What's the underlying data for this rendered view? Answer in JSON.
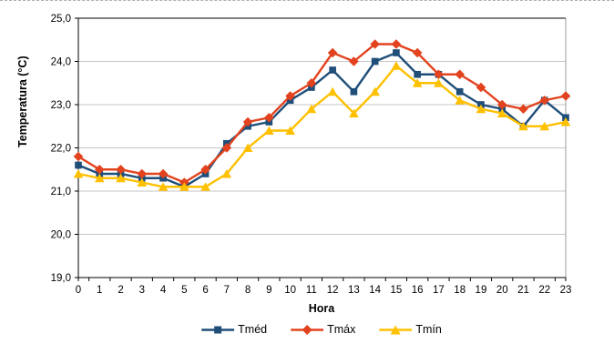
{
  "chart_data": {
    "type": "line",
    "title": "",
    "xlabel": "Hora",
    "ylabel": "Temperatura (°C)",
    "categories": [
      0,
      1,
      2,
      3,
      4,
      5,
      6,
      7,
      8,
      9,
      10,
      11,
      12,
      13,
      14,
      15,
      16,
      17,
      18,
      19,
      20,
      21,
      22,
      23
    ],
    "series": [
      {
        "name": "Tméd",
        "marker": "square",
        "color": "#1F4E79",
        "values": [
          21.6,
          21.4,
          21.4,
          21.3,
          21.3,
          21.1,
          21.4,
          22.1,
          22.5,
          22.6,
          23.1,
          23.4,
          23.8,
          23.3,
          24.0,
          24.2,
          23.7,
          23.7,
          23.3,
          23.0,
          22.9,
          22.5,
          23.1,
          22.7
        ]
      },
      {
        "name": "Tmáx",
        "marker": "diamond",
        "color": "#E2431E",
        "values": [
          21.8,
          21.5,
          21.5,
          21.4,
          21.4,
          21.2,
          21.5,
          22.0,
          22.6,
          22.7,
          23.2,
          23.5,
          24.2,
          24.0,
          24.4,
          24.4,
          24.2,
          23.7,
          23.7,
          23.4,
          23.0,
          22.9,
          23.1,
          23.2
        ]
      },
      {
        "name": "Tmín",
        "marker": "triangle",
        "color": "#FFC000",
        "values": [
          21.4,
          21.3,
          21.3,
          21.2,
          21.1,
          21.1,
          21.1,
          21.4,
          22.0,
          22.4,
          22.4,
          22.9,
          23.3,
          22.8,
          23.3,
          23.9,
          23.5,
          23.5,
          23.1,
          22.9,
          22.8,
          22.5,
          22.5,
          22.6
        ]
      }
    ],
    "ylim": [
      19,
      25
    ],
    "y_tick_labels": [
      "19,0",
      "20,0",
      "21,0",
      "22,0",
      "23,0",
      "24,0",
      "25,0"
    ],
    "grid": true,
    "grid_color": "#C6C6C6",
    "axis_color": "#000000",
    "right_border_color": "#9B9B9B",
    "legend_position": "bottom"
  }
}
